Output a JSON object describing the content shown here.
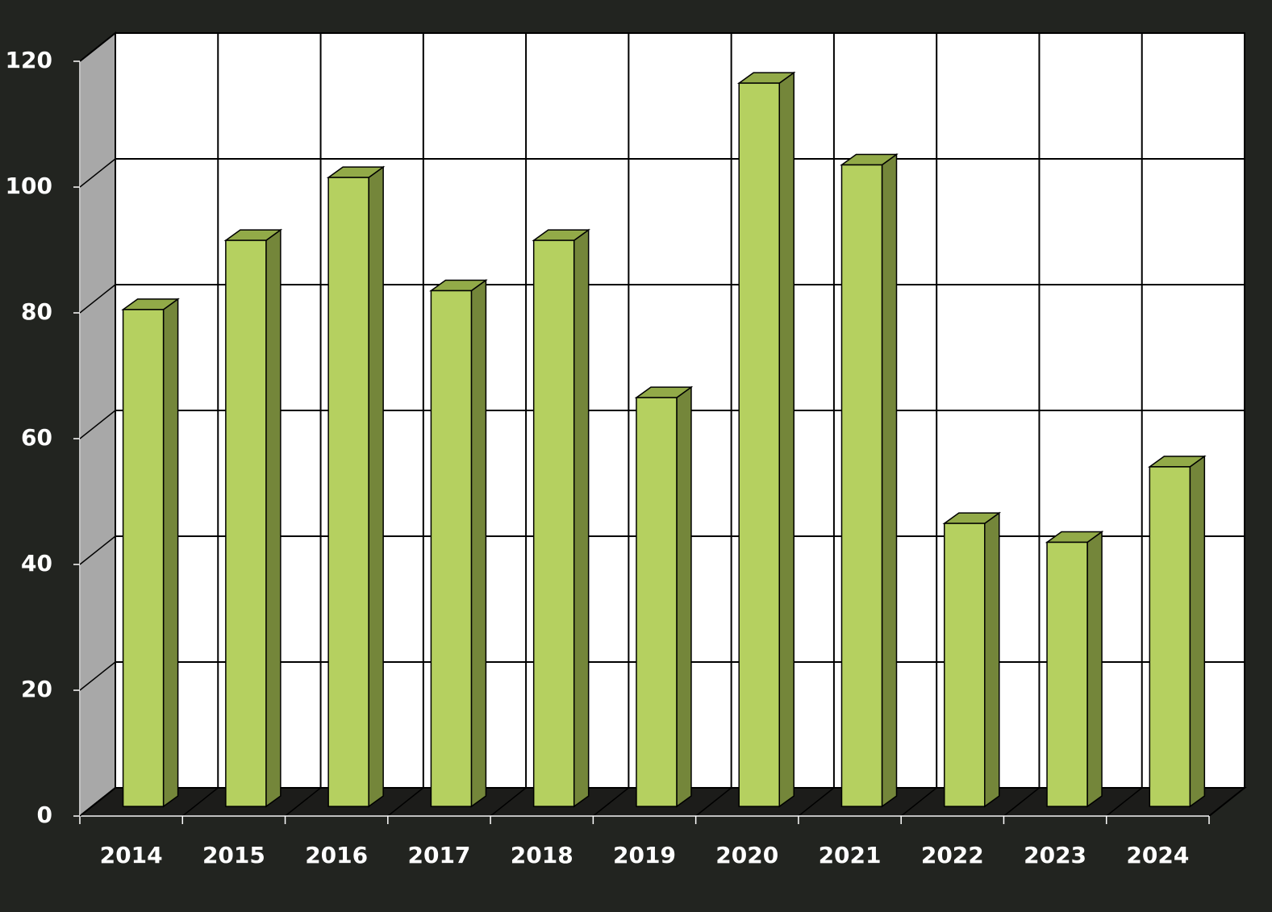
{
  "chart_data": {
    "type": "bar3d",
    "categories": [
      "2014",
      "2015",
      "2016",
      "2017",
      "2018",
      "2019",
      "2020",
      "2021",
      "2022",
      "2023",
      "2024"
    ],
    "values": [
      79,
      90,
      100,
      82,
      90,
      65,
      115,
      102,
      45,
      42,
      54
    ],
    "color": "#b5d060",
    "ylim": [
      0,
      120
    ],
    "yticks": [
      0,
      20,
      40,
      60,
      80,
      100,
      120
    ],
    "grid": true
  }
}
